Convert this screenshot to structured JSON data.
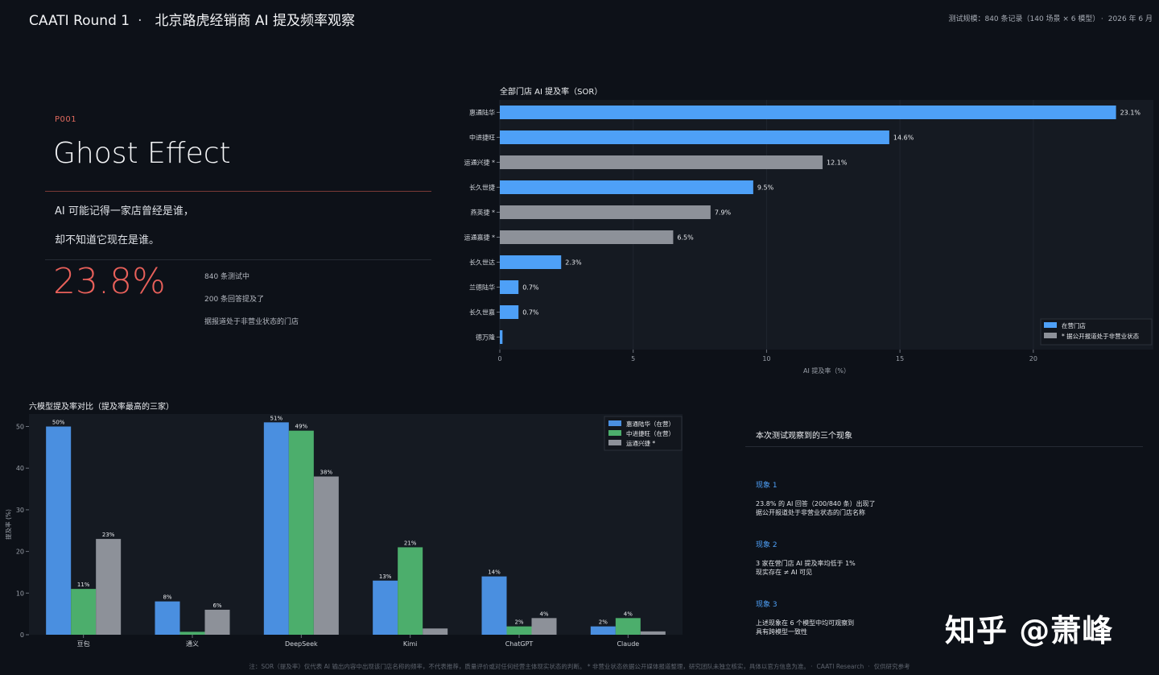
{
  "header": {
    "brand": "CAATI Round 1",
    "separator": "·",
    "title": "北京路虎经销商 AI 提及频率观察",
    "meta_scale": "测试规模：840 条记录（140 场景 × 6 模型）",
    "meta_sep": "·",
    "meta_date": "2026 年 6 月"
  },
  "hero": {
    "code": "P001",
    "headline": "Ghost Effect",
    "lead_line1": "AI 可能记得一家店曾经是谁，",
    "lead_line2": "却不知道它现在是谁。",
    "big_number": "23.8%",
    "stat_lines": [
      "840 条测试中",
      "200 条回答提及了",
      "据报道处于非营业状态的门店"
    ]
  },
  "chart_data": [
    {
      "type": "bar",
      "orientation": "horizontal",
      "title": "全部门店 AI 提及率（SOR）",
      "xlabel": "AI 提及率（%）",
      "xlim": [
        0,
        24.5
      ],
      "xticks": [
        0,
        5,
        10,
        15,
        20
      ],
      "grid": true,
      "legend": "bottom-right",
      "categories": [
        "惠通陆华",
        "中进捷旺",
        "运通兴捷 *",
        "长久世捷",
        "燕英捷 *",
        "运通嘉捷 *",
        "长久世达",
        "兰德陆华",
        "长久世嘉",
        "德万隆"
      ],
      "values": [
        23.1,
        14.6,
        12.1,
        9.5,
        7.9,
        6.5,
        2.3,
        0.7,
        0.7,
        0.1
      ],
      "value_labels": [
        "23.1%",
        "14.6%",
        "12.1%",
        "9.5%",
        "7.9%",
        "6.5%",
        "2.3%",
        "0.7%",
        "0.7%",
        ""
      ],
      "status": [
        "open",
        "open",
        "closed",
        "open",
        "closed",
        "closed",
        "open",
        "open",
        "open",
        "open"
      ],
      "legend_entries": [
        {
          "key": "open",
          "label": "在营门店",
          "color": "#4ea0f7"
        },
        {
          "key": "closed",
          "label": "* 据公开报道处于非营业状态",
          "color": "#8d9199"
        }
      ]
    },
    {
      "type": "bar",
      "title": "六模型提及率对比（提及率最高的三家）",
      "ylabel": "提及率 (%)",
      "ylim": [
        0,
        53
      ],
      "yticks": [
        0,
        10,
        20,
        30,
        40,
        50
      ],
      "legend": "top-right",
      "categories": [
        "豆包",
        "通义",
        "DeepSeek",
        "Kimi",
        "ChatGPT",
        "Claude"
      ],
      "series": [
        {
          "name": "惠通陆华（在营）",
          "color": "#4a8fe0",
          "values": [
            50,
            8,
            51,
            13,
            14,
            2
          ],
          "labels": [
            "50%",
            "8%",
            "51%",
            "13%",
            "14%",
            "2%"
          ]
        },
        {
          "name": "中进捷旺（在营）",
          "color": "#4cae6c",
          "values": [
            11,
            0.7,
            49,
            21,
            2,
            4
          ],
          "labels": [
            "11%",
            "",
            "49%",
            "21%",
            "2%",
            "4%"
          ]
        },
        {
          "name": "运通兴捷 *",
          "color": "#8d9199",
          "values": [
            23,
            6,
            38,
            1.5,
            4,
            0.8
          ],
          "labels": [
            "23%",
            "6%",
            "38%",
            "",
            "4%",
            ""
          ]
        }
      ]
    }
  ],
  "observations": {
    "title": "本次测试观察到的三个现象",
    "items": [
      {
        "heading": "现象 1",
        "line1": "23.8% 的 AI 回答（200/840 条）出现了",
        "line2": "据公开报道处于非营业状态的门店名称"
      },
      {
        "heading": "现象 2",
        "line1": "3 家在营门店 AI 提及率均低于 1%",
        "line2": "现实存在 ≠ AI 可见"
      },
      {
        "heading": "现象 3",
        "line1": "上述现象在 6 个模型中均可观察到",
        "line2": "具有跨模型一致性"
      }
    ]
  },
  "watermark": "知乎 @萧峰",
  "footer": {
    "note": "注：SOR（提及率）仅代表 AI 输出内容中出现该门店名称的频率，不代表推荐，质量评价或对任何经营主体现实状态的判断。 * 非营业状态依据公开媒体报道整理，研究团队未独立核实，具体以官方信息为准。",
    "sep": "·",
    "org": "CAATI Research",
    "disclaimer": "仅供研究参考"
  }
}
